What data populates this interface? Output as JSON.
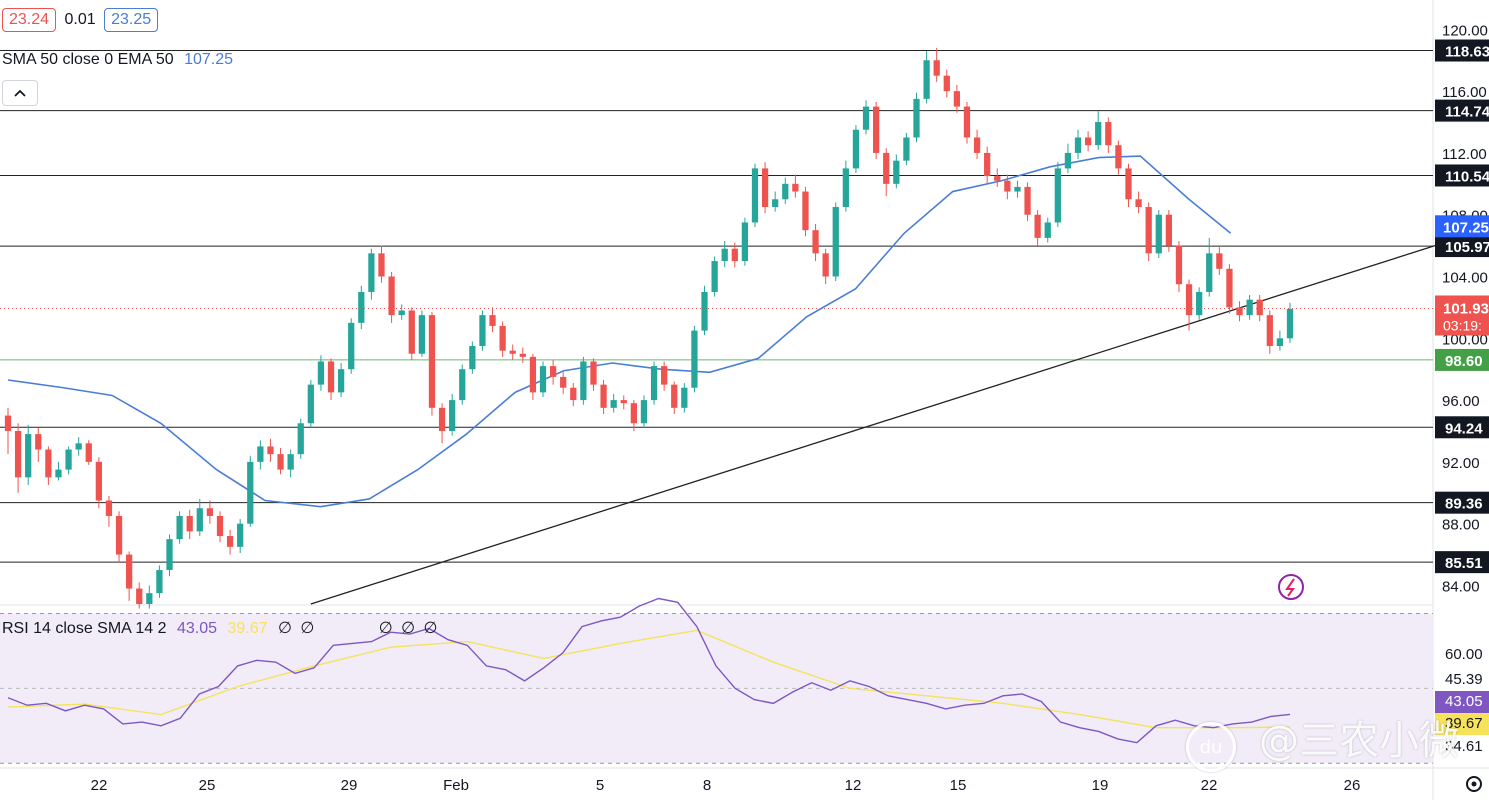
{
  "legend": {
    "bid": "23.24",
    "spread": "0.01",
    "ask": "23.25",
    "indicator_label": "SMA 50 close 0 EMA 50",
    "indicator_value": "107.25",
    "rsi_label": "RSI 14 close SMA 14 2",
    "rsi_value": "43.05",
    "rsi_sma_value": "39.67",
    "rsi_extra": [
      "∅",
      "∅"
    ],
    "rsi_extra2": [
      "∅",
      "∅",
      "∅"
    ]
  },
  "watermark": {
    "text": "@三农小微",
    "badge": "du"
  },
  "colors": {
    "up": "#26a69a",
    "down": "#ef5350",
    "ma": "#4a7ed6",
    "rsi": "#7e57c2",
    "rsi_sma": "#f7e25c",
    "support": "#1e2db8"
  },
  "chart_data": {
    "type": "candlestick",
    "price_axis": {
      "ylim": [
        82.8,
        121.9
      ],
      "ticks": [
        "84.00",
        "88.00",
        "92.00",
        "96.00",
        "100.00",
        "104.00",
        "108.00",
        "112.00",
        "116.00",
        "120.00"
      ]
    },
    "horizontal_levels": [
      "118.63",
      "114.74",
      "110.54",
      "105.97",
      "94.24",
      "89.36",
      "85.51"
    ],
    "support_level": "98.60",
    "last_price": "101.93",
    "countdown": "03:19:",
    "ma_label_value": "107.25",
    "x_ticks": [
      "22",
      "25",
      "29",
      "Feb",
      "5",
      "8",
      "12",
      "15",
      "19",
      "22",
      "26"
    ],
    "ma": {
      "name": "SMA 50",
      "points": [
        [
          0,
          97.3
        ],
        [
          8,
          96.8
        ],
        [
          15,
          96.3
        ],
        [
          22,
          94.5
        ],
        [
          30,
          91.5
        ],
        [
          37,
          89.5
        ],
        [
          45,
          89.1
        ],
        [
          52,
          89.6
        ],
        [
          59,
          91.5
        ],
        [
          66,
          93.8
        ],
        [
          73,
          96.5
        ],
        [
          80,
          97.9
        ],
        [
          87,
          98.4
        ],
        [
          94,
          98.0
        ],
        [
          101,
          97.8
        ],
        [
          108,
          98.7
        ],
        [
          115,
          101.4
        ],
        [
          122,
          103.2
        ],
        [
          129,
          106.8
        ],
        [
          136,
          109.5
        ],
        [
          143,
          110.2
        ],
        [
          150,
          111.1
        ],
        [
          157,
          111.7
        ],
        [
          163,
          111.8
        ],
        [
          170,
          109.0
        ],
        [
          176,
          106.8
        ]
      ]
    },
    "trendline": {
      "points": [
        [
          30,
          82.8
        ],
        [
          186,
          115.3
        ]
      ]
    },
    "support_line": {
      "points": [
        [
          151,
          98.5
        ],
        [
          174,
          98.6
        ]
      ]
    },
    "candles_stride": 1,
    "candles_x0": 0,
    "candles": [
      [
        95.0,
        94.0,
        95.5,
        92.5
      ],
      [
        94.0,
        91.0,
        94.5,
        90.0
      ],
      [
        91.0,
        93.8,
        94.4,
        90.5
      ],
      [
        93.8,
        92.8,
        94.2,
        92.0
      ],
      [
        92.8,
        91.0,
        93.0,
        90.5
      ],
      [
        91.0,
        91.5,
        92.0,
        90.8
      ],
      [
        91.5,
        92.8,
        93.0,
        91.2
      ],
      [
        92.8,
        93.2,
        93.6,
        92.4
      ],
      [
        93.2,
        92.0,
        93.4,
        91.8
      ],
      [
        92.0,
        89.5,
        92.3,
        89.0
      ],
      [
        89.5,
        88.5,
        89.8,
        87.8
      ],
      [
        88.5,
        86.0,
        88.8,
        85.5
      ],
      [
        86.0,
        83.8,
        86.2,
        83.0
      ],
      [
        83.8,
        82.8,
        84.2,
        82.5
      ],
      [
        82.8,
        83.5,
        84.0,
        82.5
      ],
      [
        83.5,
        85.0,
        85.3,
        83.2
      ],
      [
        85.0,
        87.0,
        87.3,
        84.6
      ],
      [
        87.0,
        88.5,
        88.8,
        86.7
      ],
      [
        88.5,
        87.5,
        88.9,
        87.0
      ],
      [
        87.5,
        89.0,
        89.6,
        87.2
      ],
      [
        89.0,
        88.5,
        89.5,
        88.0
      ],
      [
        88.5,
        87.2,
        88.8,
        86.8
      ],
      [
        87.2,
        86.5,
        87.6,
        86.0
      ],
      [
        86.5,
        88.0,
        88.3,
        86.1
      ],
      [
        88.0,
        92.0,
        92.4,
        87.8
      ],
      [
        92.0,
        93.0,
        93.4,
        91.5
      ],
      [
        93.0,
        92.5,
        93.5,
        92.0
      ],
      [
        92.5,
        91.5,
        92.9,
        91.2
      ],
      [
        91.5,
        92.5,
        92.8,
        91.0
      ],
      [
        92.5,
        94.5,
        94.8,
        92.2
      ],
      [
        94.5,
        97.0,
        97.3,
        94.2
      ],
      [
        97.0,
        98.5,
        98.9,
        96.6
      ],
      [
        98.5,
        96.5,
        98.7,
        96.0
      ],
      [
        96.5,
        98.0,
        98.4,
        96.2
      ],
      [
        98.0,
        101.0,
        101.3,
        97.7
      ],
      [
        101.0,
        103.0,
        103.4,
        100.6
      ],
      [
        103.0,
        105.5,
        105.8,
        102.5
      ],
      [
        105.5,
        104.0,
        106.0,
        103.6
      ],
      [
        104.0,
        101.5,
        104.3,
        101.0
      ],
      [
        101.5,
        101.8,
        102.2,
        101.2
      ],
      [
        101.8,
        99.0,
        102.0,
        98.6
      ],
      [
        99.0,
        101.5,
        101.8,
        98.8
      ],
      [
        101.5,
        95.5,
        101.7,
        95.0
      ],
      [
        95.5,
        94.0,
        95.8,
        93.2
      ],
      [
        94.0,
        96.0,
        96.4,
        93.7
      ],
      [
        96.0,
        98.0,
        98.3,
        95.7
      ],
      [
        98.0,
        99.5,
        99.8,
        97.7
      ],
      [
        99.5,
        101.5,
        101.8,
        99.2
      ],
      [
        101.5,
        100.8,
        102.0,
        100.4
      ],
      [
        100.8,
        99.2,
        101.1,
        98.8
      ],
      [
        99.2,
        99.0,
        99.6,
        98.6
      ],
      [
        99.0,
        98.8,
        99.4,
        98.4
      ],
      [
        98.8,
        96.5,
        99.0,
        96.0
      ],
      [
        96.5,
        98.2,
        98.5,
        96.2
      ],
      [
        98.2,
        97.5,
        98.6,
        97.0
      ],
      [
        97.5,
        96.8,
        97.8,
        96.4
      ],
      [
        96.8,
        96.0,
        97.1,
        95.6
      ],
      [
        96.0,
        98.5,
        98.8,
        95.7
      ],
      [
        98.5,
        97.0,
        98.7,
        96.6
      ],
      [
        97.0,
        95.5,
        97.3,
        95.1
      ],
      [
        95.5,
        96.0,
        96.4,
        95.2
      ],
      [
        96.0,
        95.8,
        96.3,
        95.4
      ],
      [
        95.8,
        94.5,
        96.0,
        94.0
      ],
      [
        94.5,
        96.0,
        96.3,
        94.2
      ],
      [
        96.0,
        98.2,
        98.5,
        95.7
      ],
      [
        98.2,
        97.0,
        98.5,
        96.6
      ],
      [
        97.0,
        95.5,
        97.2,
        95.1
      ],
      [
        95.5,
        96.8,
        97.1,
        95.2
      ],
      [
        96.8,
        100.5,
        100.8,
        96.5
      ],
      [
        100.5,
        103.0,
        103.4,
        100.2
      ],
      [
        103.0,
        105.0,
        105.3,
        102.7
      ],
      [
        105.0,
        105.8,
        106.3,
        104.6
      ],
      [
        105.8,
        105.0,
        106.2,
        104.6
      ],
      [
        105.0,
        107.5,
        107.8,
        104.7
      ],
      [
        107.5,
        111.0,
        111.3,
        107.2
      ],
      [
        111.0,
        108.5,
        111.4,
        108.1
      ],
      [
        108.5,
        109.0,
        109.5,
        108.2
      ],
      [
        109.0,
        110.0,
        110.4,
        108.7
      ],
      [
        110.0,
        109.5,
        110.6,
        109.1
      ],
      [
        109.5,
        107.0,
        109.8,
        106.6
      ],
      [
        107.0,
        105.5,
        107.4,
        105.0
      ],
      [
        105.5,
        104.0,
        105.8,
        103.5
      ],
      [
        104.0,
        108.5,
        108.8,
        103.7
      ],
      [
        108.5,
        111.0,
        111.5,
        108.2
      ],
      [
        111.0,
        113.5,
        113.8,
        110.7
      ],
      [
        113.5,
        115.0,
        115.4,
        113.2
      ],
      [
        115.0,
        112.0,
        115.3,
        111.6
      ],
      [
        112.0,
        110.0,
        112.3,
        109.2
      ],
      [
        110.0,
        111.5,
        111.9,
        109.7
      ],
      [
        111.5,
        113.0,
        113.3,
        111.2
      ],
      [
        113.0,
        115.5,
        115.9,
        112.7
      ],
      [
        115.5,
        118.0,
        118.6,
        115.2
      ],
      [
        118.0,
        117.0,
        118.8,
        116.6
      ],
      [
        117.0,
        116.0,
        117.4,
        115.6
      ],
      [
        116.0,
        115.0,
        116.4,
        114.6
      ],
      [
        115.0,
        113.0,
        115.3,
        112.6
      ],
      [
        113.0,
        112.0,
        113.5,
        111.6
      ],
      [
        112.0,
        110.5,
        112.4,
        110.0
      ],
      [
        110.5,
        110.2,
        111.0,
        109.8
      ],
      [
        110.2,
        109.5,
        110.6,
        109.0
      ],
      [
        109.5,
        109.8,
        110.2,
        109.1
      ],
      [
        109.8,
        108.0,
        110.1,
        107.6
      ],
      [
        108.0,
        106.5,
        108.3,
        106.0
      ],
      [
        106.5,
        107.5,
        107.8,
        106.2
      ],
      [
        107.5,
        111.0,
        111.4,
        107.2
      ],
      [
        111.0,
        112.0,
        112.6,
        110.7
      ],
      [
        112.0,
        113.0,
        113.5,
        111.6
      ],
      [
        113.0,
        112.5,
        113.4,
        112.1
      ],
      [
        112.5,
        114.0,
        114.7,
        112.2
      ],
      [
        114.0,
        112.5,
        114.3,
        112.0
      ],
      [
        112.5,
        111.0,
        112.8,
        110.6
      ],
      [
        111.0,
        109.0,
        111.3,
        108.5
      ],
      [
        109.0,
        108.5,
        109.5,
        108.1
      ],
      [
        108.5,
        105.5,
        108.8,
        105.0
      ],
      [
        105.5,
        108.0,
        108.3,
        105.2
      ],
      [
        108.0,
        106.0,
        108.3,
        105.6
      ],
      [
        106.0,
        103.5,
        106.3,
        103.0
      ],
      [
        103.5,
        101.5,
        103.8,
        100.5
      ],
      [
        101.5,
        103.0,
        103.3,
        101.2
      ],
      [
        103.0,
        105.5,
        106.5,
        102.7
      ],
      [
        105.5,
        104.5,
        105.9,
        104.1
      ],
      [
        104.5,
        102.0,
        104.8,
        101.6
      ],
      [
        102.0,
        101.5,
        102.4,
        101.1
      ],
      [
        101.5,
        102.5,
        102.8,
        101.2
      ],
      [
        102.5,
        101.5,
        102.8,
        101.1
      ],
      [
        101.5,
        99.5,
        101.8,
        99.0
      ],
      [
        99.5,
        100.0,
        100.5,
        99.2
      ],
      [
        100.0,
        101.9,
        102.3,
        99.7
      ]
    ],
    "rsi": {
      "label_values": [
        "60.00",
        "45.39",
        "43.05",
        "39.67",
        "34.61"
      ],
      "ylim": [
        29.0,
        72.0
      ],
      "upper": 70,
      "middle": 50,
      "lower": 30,
      "series": [
        [
          0,
          47.5
        ],
        [
          4,
          45.5
        ],
        [
          8,
          46.0
        ],
        [
          12,
          44.0
        ],
        [
          16,
          45.5
        ],
        [
          20,
          44.5
        ],
        [
          24,
          40.5
        ],
        [
          28,
          41.0
        ],
        [
          32,
          40.0
        ],
        [
          36,
          42.0
        ],
        [
          40,
          48.5
        ],
        [
          44,
          50.5
        ],
        [
          48,
          56.0
        ],
        [
          52,
          57.5
        ],
        [
          56,
          57.0
        ],
        [
          60,
          54.0
        ],
        [
          64,
          55.5
        ],
        [
          68,
          61.5
        ],
        [
          72,
          62.0
        ],
        [
          76,
          62.5
        ],
        [
          80,
          65.0
        ],
        [
          84,
          64.5
        ],
        [
          88,
          66.0
        ],
        [
          92,
          63.0
        ],
        [
          96,
          61.5
        ],
        [
          100,
          56.0
        ],
        [
          104,
          55.0
        ],
        [
          108,
          52.0
        ],
        [
          112,
          55.5
        ],
        [
          116,
          59.5
        ],
        [
          120,
          66.5
        ],
        [
          124,
          68.0
        ],
        [
          128,
          69.0
        ],
        [
          132,
          72.0
        ],
        [
          136,
          74.0
        ],
        [
          140,
          73.0
        ],
        [
          144,
          66.5
        ],
        [
          148,
          56.0
        ],
        [
          152,
          50.0
        ],
        [
          156,
          47.0
        ],
        [
          160,
          46.0
        ],
        [
          164,
          49.0
        ],
        [
          168,
          51.5
        ],
        [
          172,
          49.5
        ],
        [
          176,
          52.0
        ],
        [
          180,
          50.5
        ],
        [
          184,
          48.0
        ],
        [
          188,
          47.0
        ],
        [
          192,
          46.0
        ],
        [
          196,
          44.5
        ],
        [
          200,
          45.5
        ],
        [
          204,
          46.0
        ],
        [
          208,
          48.0
        ],
        [
          212,
          48.5
        ],
        [
          216,
          46.5
        ],
        [
          220,
          41.0
        ],
        [
          224,
          39.5
        ],
        [
          228,
          38.5
        ],
        [
          232,
          36.5
        ],
        [
          236,
          35.5
        ],
        [
          240,
          40.0
        ],
        [
          244,
          41.5
        ],
        [
          248,
          40.0
        ],
        [
          252,
          39.5
        ],
        [
          256,
          40.5
        ],
        [
          260,
          41.0
        ],
        [
          264,
          42.5
        ],
        [
          268,
          43.05
        ]
      ],
      "sma_series": [
        [
          0,
          45.0
        ],
        [
          16,
          45.8
        ],
        [
          32,
          43.0
        ],
        [
          48,
          50.5
        ],
        [
          64,
          56.0
        ],
        [
          80,
          61.0
        ],
        [
          96,
          62.5
        ],
        [
          112,
          58.0
        ],
        [
          128,
          62.0
        ],
        [
          144,
          65.5
        ],
        [
          160,
          57.0
        ],
        [
          176,
          50.0
        ],
        [
          192,
          48.0
        ],
        [
          208,
          46.0
        ],
        [
          224,
          43.0
        ],
        [
          240,
          39.5
        ],
        [
          256,
          39.5
        ],
        [
          268,
          39.67
        ]
      ]
    }
  }
}
